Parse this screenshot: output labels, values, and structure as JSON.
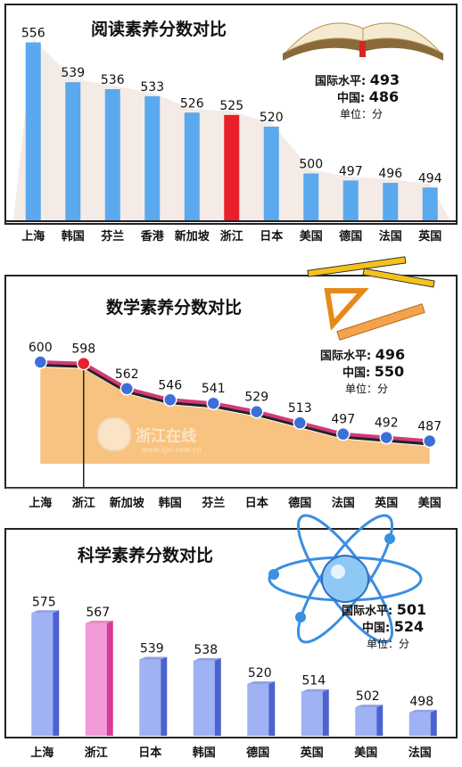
{
  "chart_data": [
    {
      "type": "bar",
      "title": "阅读素养分数对比",
      "categories": [
        "上海",
        "韩国",
        "芬兰",
        "香港",
        "新加坡",
        "浙江",
        "日本",
        "美国",
        "德国",
        "法国",
        "英国"
      ],
      "values": [
        556,
        539,
        536,
        533,
        526,
        525,
        520,
        500,
        497,
        496,
        494
      ],
      "highlight": "浙江",
      "ylim": [
        480,
        560
      ],
      "stats": {
        "intl_label": "国际水平:",
        "intl_value": "493",
        "china_label": "中国:",
        "china_value": "486",
        "unit": "单位：分"
      },
      "colors": {
        "bar": "#5aa9ee",
        "highlight": "#e8202a"
      }
    },
    {
      "type": "area",
      "title": "数学素养分数对比",
      "categories": [
        "上海",
        "浙江",
        "新加坡",
        "韩国",
        "芬兰",
        "日本",
        "德国",
        "法国",
        "英国",
        "美国"
      ],
      "values": [
        600,
        598,
        562,
        546,
        541,
        529,
        513,
        497,
        492,
        487
      ],
      "highlight": "浙江",
      "ylim": [
        480,
        600
      ],
      "stats": {
        "intl_label": "国际水平:",
        "intl_value": "496",
        "china_label": "中国:",
        "china_value": "550",
        "unit": "单位：分"
      },
      "watermark": {
        "text": "浙江在线",
        "url": "www.zjol.com.cn"
      },
      "colors": {
        "area": "#f7b86a",
        "line": "#d23a78",
        "point": "#3e6fd8",
        "highlight": "#e8202a"
      }
    },
    {
      "type": "bar",
      "title": "科学素养分数对比",
      "categories": [
        "上海",
        "浙江",
        "日本",
        "韩国",
        "德国",
        "英国",
        "美国",
        "法国"
      ],
      "values": [
        575,
        567,
        539,
        538,
        520,
        514,
        502,
        498
      ],
      "highlight": "浙江",
      "ylim": [
        480,
        580
      ],
      "stats": {
        "intl_label": "国际水平:",
        "intl_value": "501",
        "china_label": "中国:",
        "china_value": "524",
        "unit": "单位：分"
      },
      "colors": {
        "bar": "#9fb2f4",
        "bar_side": "#4b62d0",
        "highlight": "#f39ad8",
        "highlight_side": "#d63a9a"
      }
    }
  ]
}
